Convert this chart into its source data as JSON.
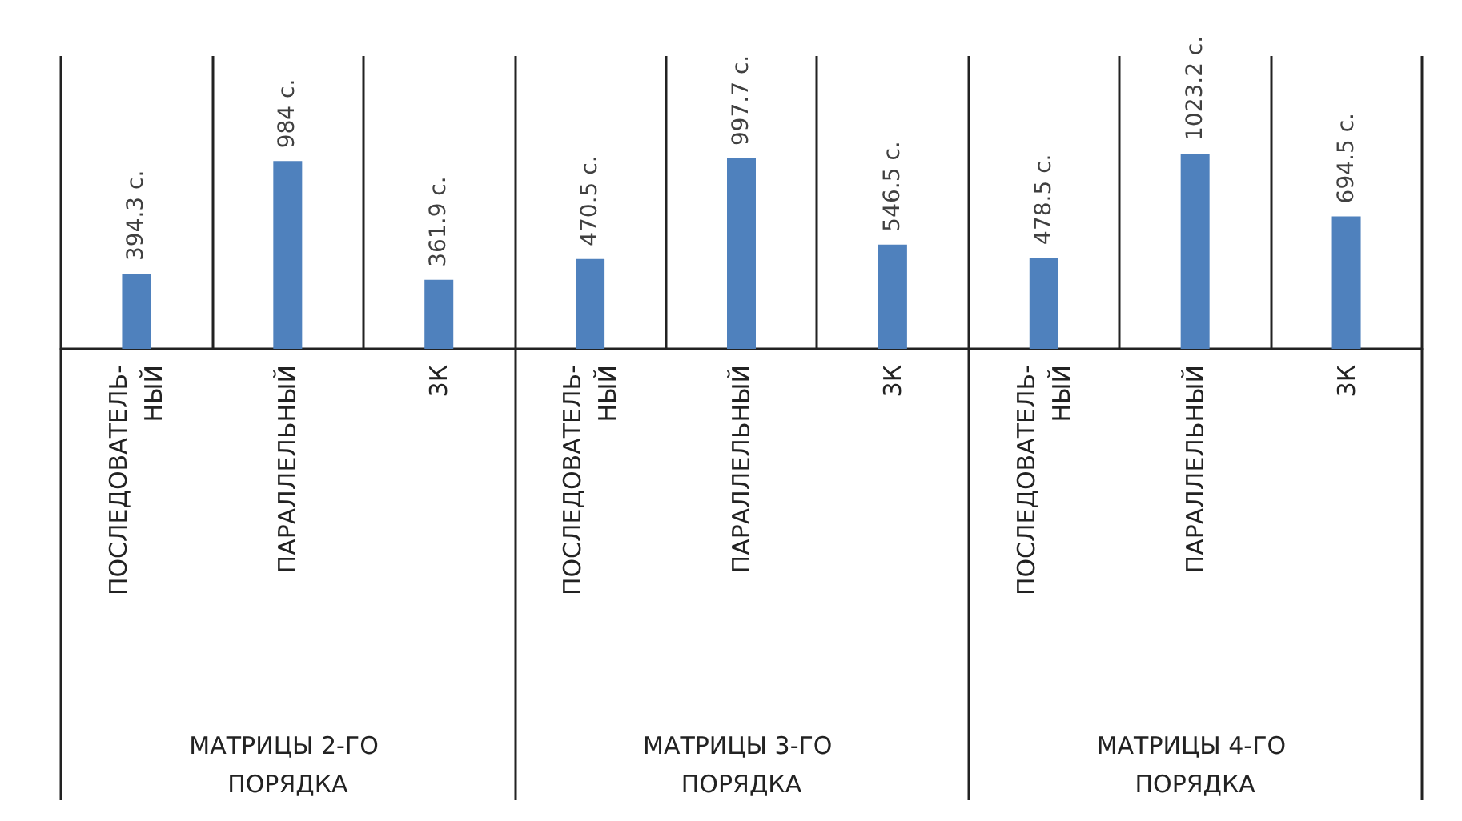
{
  "chart_data": {
    "type": "bar",
    "categories": [
      "ПОСЛЕДОВАТЕЛЬ-НЫЙ",
      "ПАРАЛЛЕЛЬНЫЙ",
      "3К",
      "ПОСЛЕДОВАТЕЛЬ-НЫЙ",
      "ПАРАЛЛЕЛЬНЫЙ",
      "3К",
      "ПОСЛЕДОВАТЕЛЬ-НЫЙ",
      "ПАРАЛЛЕЛЬНЫЙ",
      "3К"
    ],
    "values": [
      394.3,
      984,
      361.9,
      470.5,
      997.7,
      546.5,
      478.5,
      1023.2,
      694.5
    ],
    "value_labels": [
      "394.3 с.",
      "984 с.",
      "361.9 с.",
      "470.5 с.",
      "997.7 с.",
      "546.5 с.",
      "478.5 с.",
      "1023.2 с.",
      "694.5 с."
    ],
    "color": "#4f81bd",
    "annotations": [
      "МАТРИЦЫ 2-ГО ПОРЯДКА",
      "МАТРИЦЫ 3-ГО ПОРЯДКА",
      "МАТРИЦЫ 4-ГО ПОРЯДКА"
    ],
    "grid": "x"
  }
}
